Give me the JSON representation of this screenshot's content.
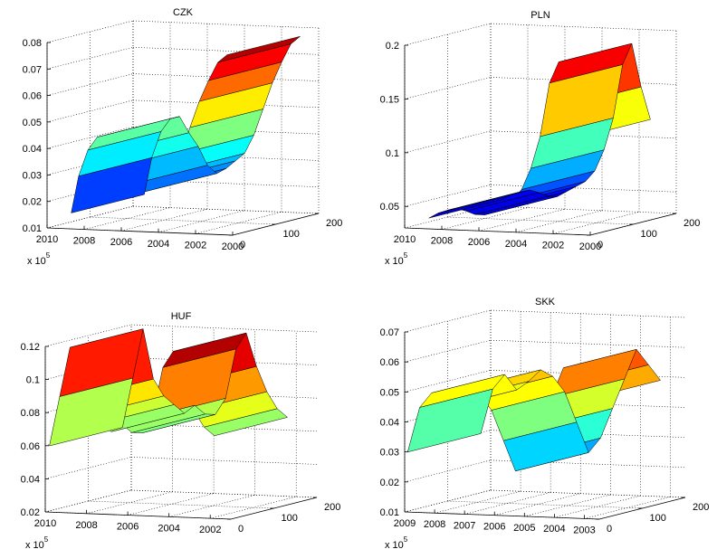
{
  "chart_data": [
    {
      "type": "surface",
      "title": "CZK",
      "colormap": "jet",
      "grid": true,
      "xlim": [
        2010,
        2000
      ],
      "xticks": [
        2010,
        2008,
        2006,
        2004,
        2002,
        2000
      ],
      "ylim": [
        0.01,
        0.08
      ],
      "yticks": [
        0.01,
        0.02,
        0.03,
        0.04,
        0.05,
        0.06,
        0.07,
        0.08
      ],
      "zlim": [
        0,
        200
      ],
      "zticks": [
        0,
        100,
        200
      ],
      "axis_note": {
        "base": "x 10",
        "exponent": "5"
      },
      "x": [
        2008.7,
        2008.3,
        2007.8,
        2007.3,
        2006.8,
        2006.3,
        2005.8,
        2005.3,
        2004.8,
        2004.3,
        2003.8,
        2003.3,
        2002.8,
        2002.3,
        2001.8,
        2001.3,
        2000.8,
        2000.3
      ],
      "values": [
        0.016,
        0.03,
        0.04,
        0.045,
        0.046,
        0.04,
        0.035,
        0.028,
        0.025,
        0.027,
        0.03,
        0.033,
        0.04,
        0.05,
        0.06,
        0.068,
        0.075,
        0.078
      ]
    },
    {
      "type": "surface",
      "title": "PLN",
      "colormap": "jet",
      "grid": true,
      "xlim": [
        2010,
        2000
      ],
      "xticks": [
        2010,
        2008,
        2006,
        2004,
        2002,
        2000
      ],
      "ylim": [
        0.03,
        0.2
      ],
      "yticks": [
        0.05,
        0.1,
        0.15,
        0.2
      ],
      "zlim": [
        0,
        200
      ],
      "zticks": [
        0,
        100,
        200
      ],
      "axis_note": {
        "base": "x 10",
        "exponent": "5"
      },
      "x": [
        2008.7,
        2008.2,
        2007.7,
        2007.2,
        2006.7,
        2006.2,
        2005.7,
        2005.2,
        2004.7,
        2004.2,
        2003.7,
        2003.2,
        2002.7,
        2002.2,
        2001.7,
        2001.2,
        2000.7
      ],
      "values": [
        0.04,
        0.045,
        0.048,
        0.05,
        0.048,
        0.045,
        0.045,
        0.05,
        0.055,
        0.06,
        0.07,
        0.09,
        0.12,
        0.17,
        0.19,
        0.15,
        0.12
      ]
    },
    {
      "type": "surface",
      "title": "HUF",
      "colormap": "jet",
      "grid": true,
      "xlim": [
        2010,
        2001
      ],
      "xticks": [
        2010,
        2008,
        2006,
        2004,
        2002
      ],
      "ylim": [
        0.02,
        0.12
      ],
      "yticks": [
        0.02,
        0.04,
        0.06,
        0.08,
        0.1,
        0.12
      ],
      "zlim": [
        0,
        200
      ],
      "zticks": [
        0,
        100,
        200
      ],
      "axis_note": {
        "base": "x 10",
        "exponent": "5"
      },
      "x": [
        2009.8,
        2009.3,
        2008.8,
        2008.3,
        2007.8,
        2007.3,
        2006.8,
        2006.3,
        2005.8,
        2005.3,
        2004.8,
        2004.3,
        2003.8,
        2003.3,
        2002.8,
        2002.3,
        2001.8
      ],
      "values": [
        0.06,
        0.09,
        0.12,
        0.09,
        0.08,
        0.075,
        0.07,
        0.075,
        0.07,
        0.07,
        0.08,
        0.11,
        0.12,
        0.1,
        0.085,
        0.075,
        0.07
      ]
    },
    {
      "type": "surface",
      "title": "SKK",
      "colormap": "jet",
      "grid": true,
      "xlim": [
        2009,
        2002.5
      ],
      "xticks": [
        2009,
        2008,
        2007,
        2006,
        2005,
        2004,
        2003
      ],
      "ylim": [
        0.01,
        0.07
      ],
      "yticks": [
        0.01,
        0.02,
        0.03,
        0.04,
        0.05,
        0.06,
        0.07
      ],
      "zlim": [
        0,
        200
      ],
      "zticks": [
        0,
        100,
        200
      ],
      "axis_note": {
        "base": "x 10",
        "exponent": "5"
      },
      "x": [
        2008.9,
        2008.5,
        2008.1,
        2007.7,
        2007.3,
        2006.9,
        2006.5,
        2006.1,
        2005.7,
        2005.3,
        2004.9,
        2004.5,
        2004.1,
        2003.7,
        2003.3,
        2002.9
      ],
      "values": [
        0.03,
        0.045,
        0.05,
        0.045,
        0.048,
        0.052,
        0.05,
        0.045,
        0.035,
        0.025,
        0.03,
        0.04,
        0.05,
        0.06,
        0.055,
        0.05
      ]
    }
  ]
}
